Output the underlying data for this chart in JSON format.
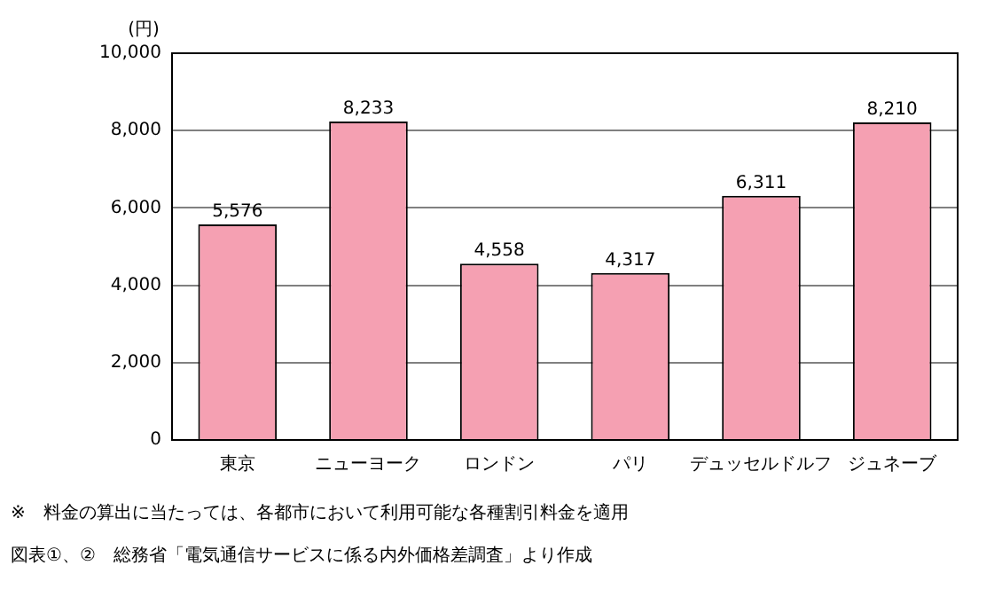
{
  "chart_data": {
    "type": "bar",
    "ylabel": "(円)",
    "categories": [
      "東京",
      "ニューヨーク",
      "ロンドン",
      "パリ",
      "デュッセルドルフ",
      "ジュネーブ"
    ],
    "values": [
      5576,
      8233,
      4558,
      4317,
      6311,
      8210
    ],
    "color": "#f5a0b2",
    "value_labels": [
      "5,576",
      "8,233",
      "4,558",
      "4,317",
      "6,311",
      "8,210"
    ],
    "ylim": [
      0,
      10000
    ],
    "yticks": [
      {
        "value": 0,
        "label": "0"
      },
      {
        "value": 2000,
        "label": "2,000"
      },
      {
        "value": 4000,
        "label": "4,000"
      },
      {
        "value": 6000,
        "label": "6,000"
      },
      {
        "value": 8000,
        "label": "8,000"
      },
      {
        "value": 10000,
        "label": "10,000"
      }
    ],
    "grid": "y",
    "legend": false,
    "annotations": [
      "※　料金の算出に当たっては、各都市において利用可能な各種割引料金を適用",
      "図表①、②　総務省「電気通信サービスに係る内外価格差調査」より作成"
    ]
  }
}
